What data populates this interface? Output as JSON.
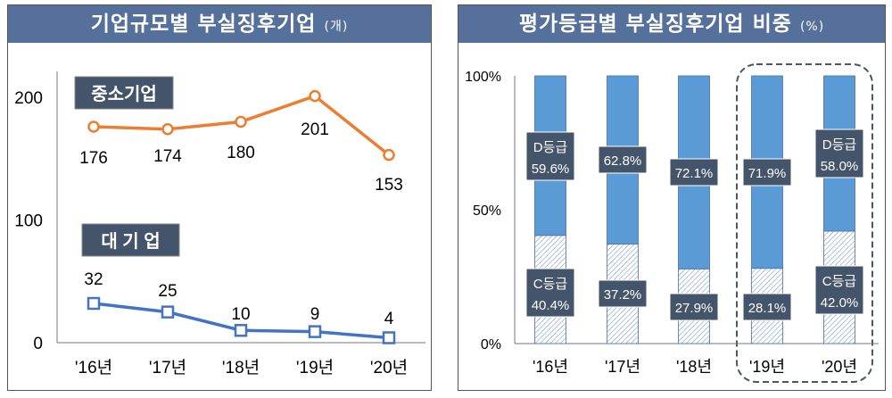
{
  "chart_data": [
    {
      "type": "line",
      "title": "기업규모별  부실징후기업",
      "unit": "(개)",
      "categories": [
        "'16년",
        "'17년",
        "'18년",
        "'19년",
        "'20년"
      ],
      "ylim": [
        0,
        200
      ],
      "yticks": [
        "0",
        "100",
        "200"
      ],
      "ytick_values": [
        0,
        100,
        200
      ],
      "series": [
        {
          "name": "중소기업",
          "values": [
            176,
            174,
            180,
            201,
            153
          ],
          "color": "#ed7d31"
        },
        {
          "name": "대 기 업",
          "values": [
            32,
            25,
            10,
            9,
            4
          ],
          "color": "#4472c4"
        }
      ]
    },
    {
      "type": "bar",
      "stacked": true,
      "title": "평가등급별  부실징후기업  비중",
      "unit": "(%)",
      "categories": [
        "'16년",
        "'17년",
        "'18년",
        "'19년",
        "'20년"
      ],
      "ylim": [
        0,
        100
      ],
      "yticks": [
        "0%",
        "50%",
        "100%"
      ],
      "ytick_values": [
        0,
        50,
        100
      ],
      "series": [
        {
          "name": "C등급",
          "values": [
            40.4,
            37.2,
            27.9,
            28.1,
            42.0
          ],
          "labels": [
            "40.4%",
            "37.2%",
            "27.9%",
            "28.1%",
            "42.0%"
          ],
          "pattern": "hatched"
        },
        {
          "name": "D등급",
          "values": [
            59.6,
            62.8,
            72.1,
            71.9,
            58.0
          ],
          "labels": [
            "59.6%",
            "62.8%",
            "72.1%",
            "71.9%",
            "58.0%"
          ],
          "color": "#5b9bd5"
        }
      ],
      "highlight": [
        "'19년",
        "'20년"
      ]
    }
  ]
}
